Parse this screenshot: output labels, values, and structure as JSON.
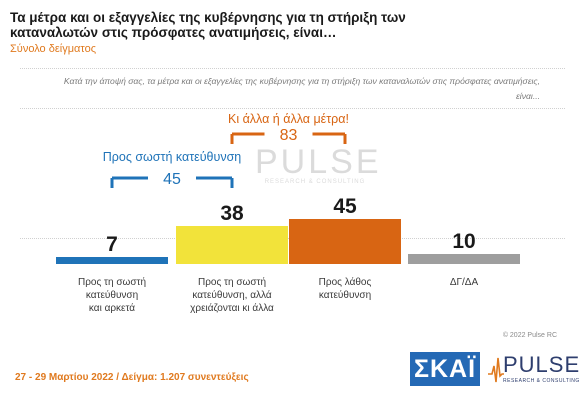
{
  "header": {
    "title": "Τα μέτρα και οι εξαγγελίες της κυβέρνησης για τη στήριξη των καταναλωτών στις πρόσφατες ανατιμήσεις, είναι…",
    "subtitle": "Σύνολο δείγματος"
  },
  "question": "Κατά την άποψή σας, τα μέτρα και οι εξαγγελίες της κυβέρνησης για τη στήριξη των καταναλωτών στις πρόσφατες ανατιμήσεις, είναι...",
  "watermark": {
    "main": "PULSE",
    "sub": "RESEARCH & CONSULTING"
  },
  "chart_data": {
    "type": "bar",
    "title": "Τα μέτρα και οι εξαγγελίες της κυβέρνησης για τη στήριξη των καταναλωτών στις πρόσφατες ανατιμήσεις, είναι…",
    "categories": [
      "Προς τη σωστή κατεύθυνση και αρκετά",
      "Προς τη σωστή κατεύθυνση, αλλά χρειάζονται κι άλλα",
      "Προς λάθος κατεύθυνση",
      "ΔΓ/ΔΑ"
    ],
    "category_lines": [
      [
        "Προς τη σωστή",
        "κατεύθυνση",
        "και αρκετά"
      ],
      [
        "Προς τη σωστή",
        "κατεύθυνση, αλλά",
        "χρειάζονται κι άλλα"
      ],
      [
        "Προς λάθος",
        "κατεύθυνση"
      ],
      [
        "ΔΓ/ΔΑ"
      ]
    ],
    "values": [
      7,
      38,
      45,
      10
    ],
    "value_labels": [
      "7",
      "38",
      "45",
      "10"
    ],
    "colors": [
      "#1f73b8",
      "#f2e33a",
      "#d86513",
      "#9e9e9e"
    ],
    "groups": [
      {
        "label": "Προς σωστή κατεύθυνση",
        "total": "45",
        "categories": [
          0,
          1
        ],
        "color": "#1f73b8"
      },
      {
        "label": "Κι άλλα ή άλλα μέτρα!",
        "total": "83",
        "categories": [
          1,
          2
        ],
        "color": "#d86513"
      }
    ],
    "grid": false,
    "legend": "none"
  },
  "footer": {
    "copyright": "© 2022 Pulse RC",
    "fieldwork": "27 - 29 Μαρτίου 2022 / Δείγμα: 1.207 συνεντεύξεις",
    "logo_skai": "ΣΚΑΪ",
    "logo_pulse": "PULSE",
    "logo_pulse_sub": "RESEARCH & CONSULTING"
  }
}
